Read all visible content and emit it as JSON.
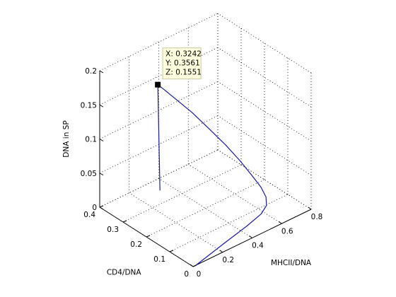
{
  "chart_data": {
    "type": "line",
    "projection": "3d",
    "xlabel": "MHCII/DNA",
    "ylabel": "CD4/DNA",
    "zlabel": "DNA in SP",
    "xlim": [
      0,
      0.8
    ],
    "ylim": [
      0,
      0.4
    ],
    "zlim": [
      0,
      0.2
    ],
    "xticks": [
      0,
      0.2,
      0.4,
      0.6,
      0.8
    ],
    "yticks": [
      0,
      0.1,
      0.2,
      0.3,
      0.4
    ],
    "zticks": [
      0,
      0.05,
      0.1,
      0.15,
      0.2
    ],
    "xtick_labels": [
      "0",
      "0.2",
      "0.4",
      "0.6",
      "0.8"
    ],
    "ytick_labels": [
      "0",
      "0.1",
      "0.2",
      "0.3",
      "0.4"
    ],
    "ztick_labels": [
      "0",
      "0.05",
      "0.1",
      "0.15",
      "0.2"
    ],
    "grid": true,
    "series_color": "#1a1aa6",
    "series": [
      {
        "points": [
          [
            0.02,
            0.0,
            0.0
          ],
          [
            0.25,
            0.03,
            0.0
          ],
          [
            0.45,
            0.055,
            0.0
          ],
          [
            0.58,
            0.075,
            0.0
          ],
          [
            0.64,
            0.09,
            0.003
          ],
          [
            0.66,
            0.105,
            0.01
          ],
          [
            0.65,
            0.12,
            0.022
          ],
          [
            0.62,
            0.14,
            0.038
          ],
          [
            0.58,
            0.165,
            0.058
          ],
          [
            0.53,
            0.195,
            0.08
          ],
          [
            0.47,
            0.23,
            0.103
          ],
          [
            0.42,
            0.27,
            0.123
          ],
          [
            0.37,
            0.315,
            0.14
          ],
          [
            0.34,
            0.34,
            0.15
          ],
          [
            0.3242,
            0.3561,
            0.1551
          ],
          [
            0.31,
            0.345,
            0.125
          ],
          [
            0.29,
            0.33,
            0.09
          ],
          [
            0.27,
            0.315,
            0.055
          ],
          [
            0.25,
            0.3,
            0.02
          ]
        ]
      }
    ],
    "datatip": {
      "point": [
        0.3242,
        0.3561,
        0.1551
      ],
      "lines": [
        "X: 0.3242",
        "Y: 0.3561",
        "Z: 0.1551"
      ]
    }
  }
}
